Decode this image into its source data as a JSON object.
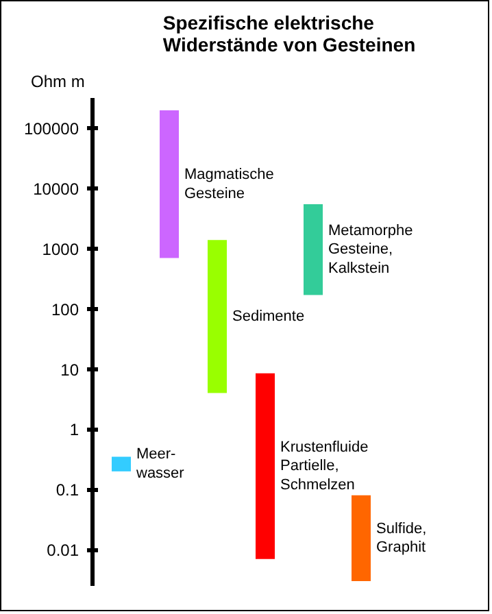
{
  "chart_data": {
    "type": "bar",
    "title": "Spezifische elektrische\nWiderstände von Gesteinen",
    "ylabel": "Ohm m",
    "categories": [
      null,
      null,
      null,
      null,
      null,
      null
    ],
    "base": [
      0.2,
      700,
      4,
      0.007,
      170,
      0.003
    ],
    "values": [
      0.15,
      199300,
      1396,
      8.493,
      5330,
      0.077
    ],
    "colors": [
      "#33ccff",
      "#cc66ff",
      "#99ff00",
      "#ff0000",
      "#33cc99",
      "#ff6600"
    ],
    "annotations": [
      "Meer-\nwasser",
      "Magmatische\nGesteine",
      "Sedimente",
      "Krustenfluide\nPartielle,\nSchmelzen",
      "Metamorphe\nGesteine,\nKalkstein",
      "Sulfide,\nGraphit"
    ],
    "log": true,
    "ylim": [
      0.0025,
      320000
    ],
    "yticks": [
      0.01,
      0.1,
      1,
      10,
      100,
      1000,
      10000,
      100000
    ],
    "tick_labels": "y",
    "grid": false
  }
}
